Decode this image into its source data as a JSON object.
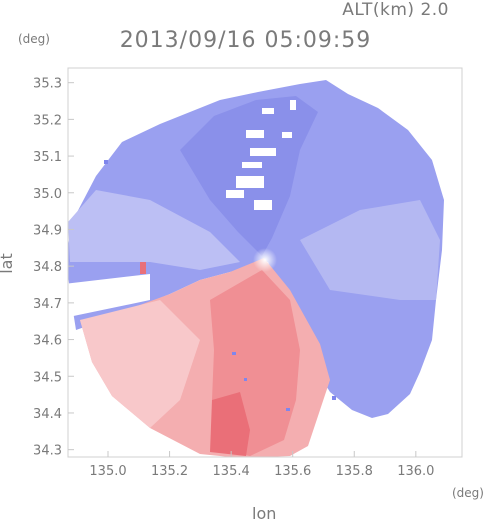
{
  "header": {
    "altitude": "ALT(km) 2.0",
    "timestamp": "2013/09/16 05:09:59"
  },
  "axes": {
    "x_unit": "(deg)",
    "y_unit": "(deg)",
    "xlabel": "lon",
    "ylabel": "lat",
    "xlim": [
      134.87,
      136.15
    ],
    "ylim": [
      34.28,
      35.34
    ],
    "x_ticks": [
      "135.0",
      "135.2",
      "135.4",
      "135.6",
      "135.8",
      "136.0"
    ],
    "x_tick_values": [
      135.0,
      135.2,
      135.4,
      135.6,
      135.8,
      136.0
    ],
    "y_ticks": [
      "35.3",
      "35.2",
      "35.1",
      "35.0",
      "34.9",
      "34.8",
      "34.7",
      "34.6",
      "34.5",
      "34.4",
      "34.3"
    ],
    "y_tick_values": [
      35.3,
      35.2,
      35.1,
      35.0,
      34.9,
      34.8,
      34.7,
      34.6,
      34.5,
      34.4,
      34.3
    ]
  },
  "radar": {
    "center_lon": 135.51,
    "center_lat": 34.81,
    "approach_color": "#7f86ec",
    "recede_color": "#f07c82",
    "frame_color": "#d0d0d0"
  }
}
